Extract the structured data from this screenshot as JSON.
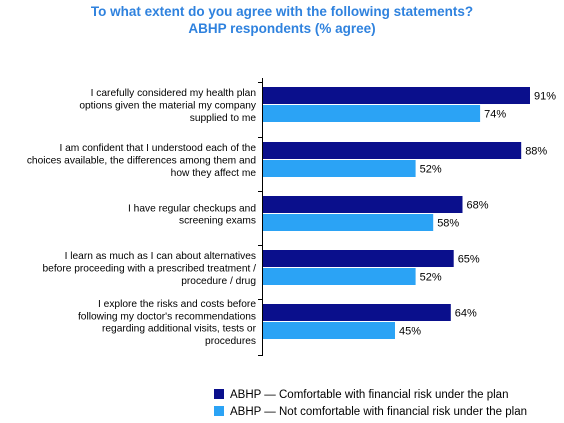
{
  "chart_data": {
    "type": "bar",
    "orientation": "horizontal",
    "title": "To what extent do you agree with the following statements?",
    "subtitle": "ABHP respondents (% agree)",
    "categories": [
      [
        "I carefully considered my health plan",
        "options given the material my company",
        "supplied to me"
      ],
      [
        "I am confident that I understood each of the",
        "choices available, the differences among them and",
        "how they affect me"
      ],
      [
        "I have regular checkups and",
        "screening exams"
      ],
      [
        "I learn as much as I can about alternatives",
        "before proceeding with a prescribed treatment /",
        "procedure / drug"
      ],
      [
        "I explore the risks and costs before",
        "following my doctor's recommendations",
        "regarding additional visits, tests or",
        "procedures"
      ]
    ],
    "series": [
      {
        "name": "ABHP — Comfortable with financial risk under the plan",
        "color": "#0A0F8C",
        "values": [
          91,
          88,
          68,
          65,
          64
        ]
      },
      {
        "name": "ABHP — Not comfortable with financial risk under the plan",
        "color": "#2BA3F5",
        "values": [
          74,
          52,
          58,
          52,
          45
        ]
      }
    ],
    "value_suffix": "%",
    "xlim": [
      0,
      100
    ],
    "grid": false,
    "legend_position": "bottom-right"
  }
}
